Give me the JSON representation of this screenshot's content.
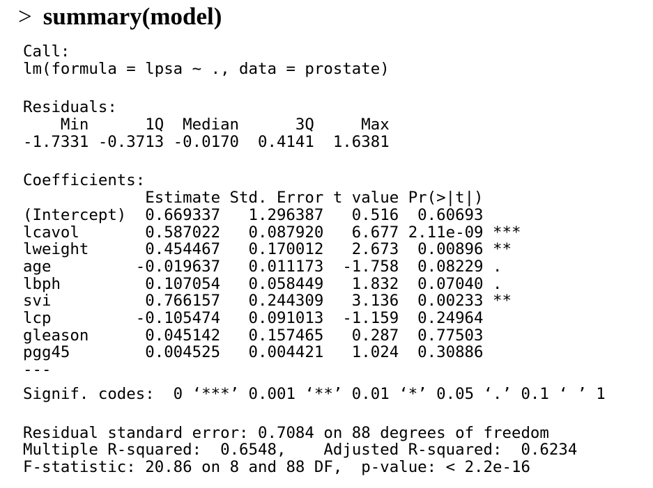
{
  "header": {
    "prompt": ">",
    "command": "summary(model)"
  },
  "call": {
    "label": "Call:",
    "formula": "lm(formula = lpsa ~ ., data = prostate)"
  },
  "residuals": {
    "label": "Residuals:",
    "columns": [
      "Min",
      "1Q",
      "Median",
      "3Q",
      "Max"
    ],
    "values": [
      "-1.7331",
      "-0.3713",
      "-0.0170",
      "0.4141",
      "1.6381"
    ]
  },
  "coefficients": {
    "label": "Coefficients:",
    "columns": [
      "Estimate",
      "Std. Error",
      "t value",
      "Pr(>|t|)"
    ],
    "rows": [
      [
        "(Intercept)",
        "0.669337",
        "1.296387",
        "0.516",
        "0.60693"
      ],
      [
        "lcavol",
        "0.587022",
        "0.087920",
        "6.677",
        "2.11e-09",
        "***"
      ],
      [
        "lweight",
        "0.454467",
        "0.170012",
        "2.673",
        "0.00896",
        "**"
      ],
      [
        "age",
        "-0.019637",
        "0.011173",
        "-1.758",
        "0.08229",
        "."
      ],
      [
        "lbph",
        "0.107054",
        "0.058449",
        "1.832",
        "0.07040",
        "."
      ],
      [
        "svi",
        "0.766157",
        "0.244309",
        "3.136",
        "0.00233",
        "**"
      ],
      [
        "lcp",
        "-0.105474",
        "0.091013",
        "-1.159",
        "0.24964"
      ],
      [
        "gleason",
        "0.045142",
        "0.157465",
        "0.287",
        "0.77503"
      ],
      [
        "pgg45",
        "0.004525",
        "0.004421",
        "1.024",
        "0.30886"
      ]
    ]
  },
  "separator": "---",
  "signif_codes": "Signif. codes:  0 ‘***’ 0.001 ‘**’ 0.01 ‘*’ 0.05 ‘.’ 0.1 ‘ ’ 1",
  "footer": [
    "Residual standard error: 0.7084 on 88 degrees of freedom",
    "Multiple R-squared:  0.6548,\tAdjusted R-squared:  0.6234",
    "F-statistic: 20.86 on 8 and 88 DF,  p-value: < 2.2e-16"
  ]
}
